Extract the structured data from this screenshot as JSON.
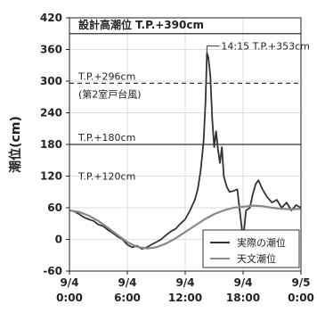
{
  "chart_data": {
    "type": "line",
    "ylabel": "潮位(cm)",
    "ylim": [
      -60,
      420
    ],
    "yticks": [
      -60,
      0,
      60,
      120,
      180,
      240,
      300,
      360,
      420
    ],
    "xlim": [
      0,
      24
    ],
    "xticks": [
      {
        "x": 0,
        "line1": "9/4",
        "line2": "0:00"
      },
      {
        "x": 6,
        "line1": "9/4",
        "line2": "6:00"
      },
      {
        "x": 12,
        "line1": "9/4",
        "line2": "12:00"
      },
      {
        "x": 18,
        "line1": "9/4",
        "line2": "18:00"
      },
      {
        "x": 24,
        "line1": "9/5",
        "line2": "0:00"
      }
    ],
    "reference_lines": [
      {
        "name": "design",
        "y": 390,
        "label": "設計高潮位 T.P.+390cm",
        "style": "solid"
      },
      {
        "name": "muroto",
        "y": 296,
        "label": "T.P.+296cm",
        "sublabel": "(第2室戸台風)",
        "style": "dashed"
      },
      {
        "name": "tp180",
        "y": 180,
        "label": "T.P.+180cm",
        "style": "solid"
      },
      {
        "name": "tp120",
        "y": 120,
        "label": "T.P.+120cm",
        "style": "none"
      }
    ],
    "peak_annotation": {
      "label": "14:15 T.P.+353cm",
      "x": 14.25,
      "y": 353
    },
    "legend": {
      "placement": "bottom-right",
      "entries": [
        "実際の潮位",
        "天文潮位"
      ]
    },
    "series": [
      {
        "name": "実際の潮位",
        "color": "#333333",
        "x": [
          0,
          0.5,
          1,
          1.5,
          2,
          2.5,
          3,
          3.5,
          4,
          4.5,
          5,
          5.5,
          6,
          6.5,
          7,
          7.5,
          8,
          8.5,
          9,
          9.5,
          10,
          10.5,
          11,
          11.5,
          12,
          12.5,
          13,
          13.3,
          13.6,
          13.9,
          14.1,
          14.25,
          14.4,
          14.6,
          14.8,
          15.0,
          15.2,
          15.4,
          15.6,
          15.8,
          16.0,
          16.3,
          16.6,
          17.0,
          17.4,
          18.0,
          18.3,
          18.7,
          19.0,
          19.3,
          19.6,
          20.0,
          20.5,
          21.0,
          21.5,
          22.0,
          22.5,
          23.0,
          23.5,
          24.0
        ],
        "y": [
          55,
          53,
          48,
          42,
          38,
          35,
          28,
          25,
          18,
          12,
          5,
          0,
          -10,
          -15,
          -12,
          -18,
          -15,
          -10,
          -5,
          0,
          8,
          15,
          20,
          30,
          38,
          55,
          75,
          95,
          130,
          185,
          260,
          353,
          345,
          310,
          230,
          175,
          205,
          170,
          145,
          175,
          120,
          100,
          90,
          92,
          95,
          0,
          55,
          60,
          85,
          105,
          112,
          95,
          80,
          70,
          75,
          60,
          70,
          55,
          65,
          60
        ]
      },
      {
        "name": "天文潮位",
        "color": "#888888",
        "x": [
          0,
          1,
          2,
          3,
          4,
          5,
          6,
          7,
          8,
          9,
          10,
          11,
          12,
          13,
          14,
          15,
          16,
          17,
          18,
          19,
          20,
          21,
          22,
          23,
          24
        ],
        "y": [
          55,
          52,
          45,
          35,
          22,
          8,
          -5,
          -14,
          -17,
          -15,
          -8,
          2,
          14,
          26,
          38,
          48,
          55,
          60,
          62,
          64,
          63,
          60,
          58,
          57,
          58
        ]
      }
    ]
  }
}
